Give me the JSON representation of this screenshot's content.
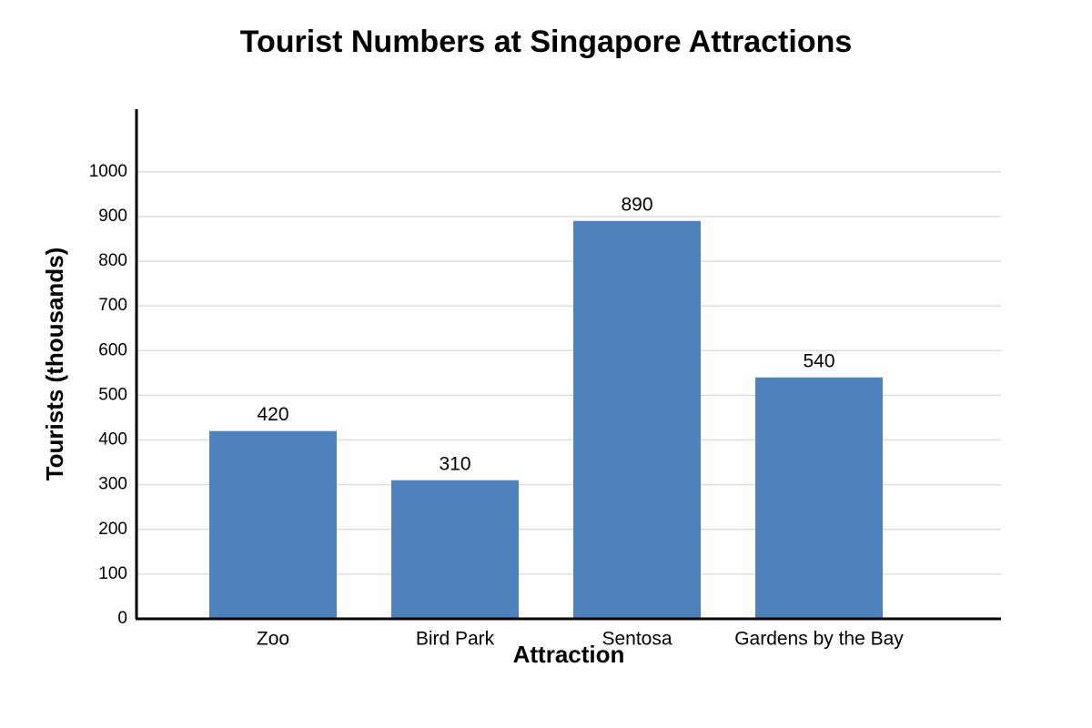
{
  "chart_data": {
    "type": "bar",
    "title": "Tourist Numbers at Singapore Attractions",
    "x_label": "Attraction",
    "y_label": "Tourists (thousands)",
    "categories": [
      "Zoo",
      "Bird Park",
      "Sentosa",
      "Gardens by the Bay"
    ],
    "values": [
      420,
      310,
      890,
      540
    ],
    "color": "#4f81bd",
    "ylim": [
      0,
      1140
    ],
    "yticks": [
      0,
      100,
      200,
      300,
      400,
      500,
      600,
      700,
      800,
      900,
      1000
    ],
    "grid": true
  }
}
